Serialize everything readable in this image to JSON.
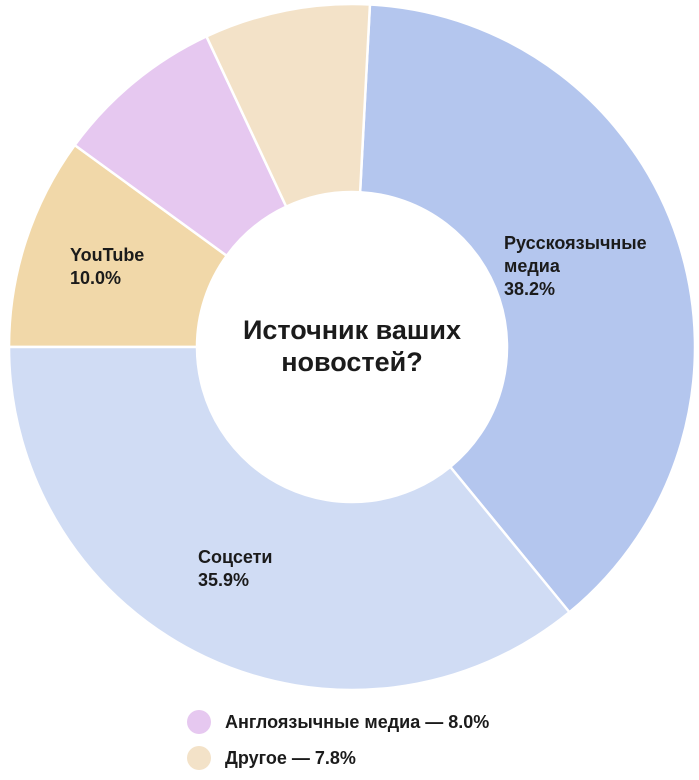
{
  "chart_data": {
    "type": "pie",
    "title": "Источник ваших новостей?",
    "title_lines": [
      "Источник ваших",
      "новостей?"
    ],
    "series": [
      {
        "name": "Русскоязычные медиа",
        "label_lines": [
          "Русскоязычные",
          "медиа"
        ],
        "value": 38.2,
        "value_label": "38.2%",
        "color": "#b4c6ee",
        "in_legend": false
      },
      {
        "name": "Соцсети",
        "label_lines": [
          "Соцсети"
        ],
        "value": 35.9,
        "value_label": "35.9%",
        "color": "#d0dcf4",
        "in_legend": false
      },
      {
        "name": "YouTube",
        "label_lines": [
          "YouTube"
        ],
        "value": 10.0,
        "value_label": "10.0%",
        "color": "#f1d8a9",
        "in_legend": false
      },
      {
        "name": "Англоязычные медиа",
        "label_lines": [],
        "value": 8.0,
        "value_label": "8.0%",
        "color": "#e6c8f0",
        "in_legend": true,
        "legend_text": "Англоязычные медиа — 8.0%"
      },
      {
        "name": "Другое",
        "label_lines": [],
        "value": 7.8,
        "value_label": "7.8%",
        "color": "#f3e2c8",
        "in_legend": true,
        "legend_text": "Другое — 7.8%"
      }
    ],
    "legend_position": "bottom"
  }
}
